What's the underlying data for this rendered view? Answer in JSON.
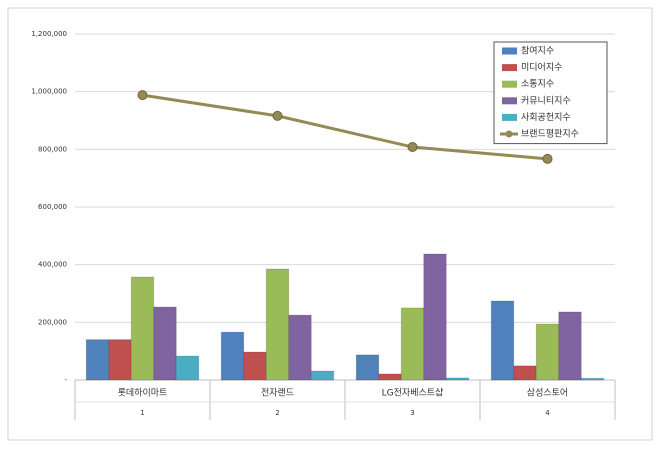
{
  "chart_data": {
    "type": "combo",
    "categories": [
      "롯데하이마트",
      "전자랜드",
      "LG전자베스트샵",
      "삼성스토어"
    ],
    "category_numbers": [
      "1",
      "2",
      "3",
      "4"
    ],
    "series": [
      {
        "name": "참여지수",
        "type": "bar",
        "color": "#4f81bd",
        "values": [
          140000,
          166000,
          87000,
          274000
        ]
      },
      {
        "name": "미디어지수",
        "type": "bar",
        "color": "#c0504d",
        "values": [
          140000,
          97000,
          21000,
          49000
        ]
      },
      {
        "name": "소통지수",
        "type": "bar",
        "color": "#9bbb59",
        "values": [
          357000,
          385000,
          250000,
          194000
        ]
      },
      {
        "name": "커뮤니티지수",
        "type": "bar",
        "color": "#8064a2",
        "values": [
          253000,
          225000,
          437000,
          236000
        ]
      },
      {
        "name": "사회공헌지수",
        "type": "bar",
        "color": "#4bacc6",
        "values": [
          83000,
          31000,
          7000,
          6000
        ]
      },
      {
        "name": "브랜드평판지수",
        "type": "line",
        "color": "#948a54",
        "values": [
          988000,
          916000,
          808000,
          767000
        ]
      }
    ],
    "ylim": [
      0,
      1200000
    ],
    "yticks": [
      {
        "value": 0,
        "label": "-"
      },
      {
        "value": 200000,
        "label": "200,000"
      },
      {
        "value": 400000,
        "label": "400,000"
      },
      {
        "value": 600000,
        "label": "600,000"
      },
      {
        "value": 800000,
        "label": "800,000"
      },
      {
        "value": 1000000,
        "label": "1,000,000"
      },
      {
        "value": 1200000,
        "label": "1,200,000"
      }
    ],
    "grid": true,
    "legend": "top-right"
  }
}
